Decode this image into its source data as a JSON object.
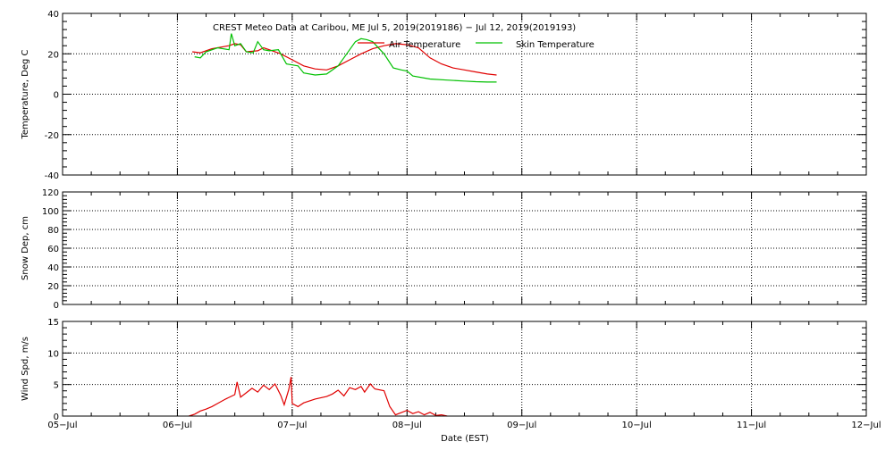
{
  "chart_data": {
    "type": "line",
    "title": "CREST Meteo Data at Caribou, ME   Jul  5, 2019(2019186) − Jul 12, 2019(2019193)",
    "xlabel": "Date (EST)",
    "x_tick_labels": [
      "05−Jul",
      "06−Jul",
      "07−Jul",
      "08−Jul",
      "09−Jul",
      "10−Jul",
      "11−Jul",
      "12−Jul"
    ],
    "xlim_days": [
      0,
      7
    ],
    "colors": {
      "air": "#e00000",
      "skin": "#00c000",
      "wind": "#e00000"
    },
    "panels": [
      {
        "id": "temperature",
        "ylabel": "Temperature, Deg C",
        "ylim": [
          -40,
          40
        ],
        "yticks": [
          -40,
          -20,
          0,
          20,
          40
        ],
        "legend": [
          {
            "name": "Air Temperature",
            "color": "#e00000"
          },
          {
            "name": "Skin Temperature",
            "color": "#00c000"
          }
        ],
        "series": [
          {
            "name": "Air Temperature",
            "color": "#e00000",
            "points": [
              [
                1.13,
                21
              ],
              [
                1.2,
                20.5
              ],
              [
                1.3,
                22.5
              ],
              [
                1.4,
                23.5
              ],
              [
                1.45,
                24
              ],
              [
                1.5,
                25
              ],
              [
                1.55,
                24.5
              ],
              [
                1.6,
                21
              ],
              [
                1.7,
                21.5
              ],
              [
                1.75,
                23
              ],
              [
                1.8,
                22
              ],
              [
                1.9,
                20
              ],
              [
                2.0,
                17
              ],
              [
                2.1,
                14
              ],
              [
                2.2,
                12.5
              ],
              [
                2.3,
                12
              ],
              [
                2.4,
                14
              ],
              [
                2.5,
                17
              ],
              [
                2.6,
                20
              ],
              [
                2.7,
                22.5
              ],
              [
                2.8,
                24
              ],
              [
                2.9,
                25
              ],
              [
                3.0,
                24.5
              ],
              [
                3.1,
                23
              ],
              [
                3.2,
                18
              ],
              [
                3.3,
                15
              ],
              [
                3.4,
                13
              ],
              [
                3.5,
                12
              ],
              [
                3.6,
                11
              ],
              [
                3.7,
                10
              ],
              [
                3.78,
                9.5
              ]
            ]
          },
          {
            "name": "Skin Temperature",
            "color": "#00c000",
            "points": [
              [
                1.15,
                18.5
              ],
              [
                1.2,
                18
              ],
              [
                1.25,
                21
              ],
              [
                1.35,
                23
              ],
              [
                1.45,
                22
              ],
              [
                1.47,
                30
              ],
              [
                1.5,
                24
              ],
              [
                1.55,
                25
              ],
              [
                1.6,
                21
              ],
              [
                1.66,
                20.5
              ],
              [
                1.7,
                26
              ],
              [
                1.75,
                22
              ],
              [
                1.8,
                21.5
              ],
              [
                1.88,
                22
              ],
              [
                1.95,
                15
              ],
              [
                2.05,
                14
              ],
              [
                2.1,
                10.5
              ],
              [
                2.2,
                9.5
              ],
              [
                2.3,
                10
              ],
              [
                2.4,
                14
              ],
              [
                2.5,
                22
              ],
              [
                2.55,
                26
              ],
              [
                2.6,
                27.5
              ],
              [
                2.65,
                27
              ],
              [
                2.7,
                26
              ],
              [
                2.8,
                20
              ],
              [
                2.88,
                13
              ],
              [
                2.95,
                12
              ],
              [
                3.0,
                11.5
              ],
              [
                3.05,
                9
              ],
              [
                3.2,
                7.5
              ],
              [
                3.35,
                7
              ],
              [
                3.5,
                6.5
              ],
              [
                3.6,
                6.2
              ],
              [
                3.7,
                6
              ],
              [
                3.78,
                6
              ]
            ]
          }
        ]
      },
      {
        "id": "snow",
        "ylabel": "Snow Dep, cm",
        "ylim": [
          0,
          120
        ],
        "yticks": [
          0,
          20,
          40,
          60,
          80,
          100,
          120
        ],
        "series": []
      },
      {
        "id": "wind",
        "ylabel": "Wind Spd, m/s",
        "ylim": [
          0,
          15
        ],
        "yticks": [
          0,
          5,
          10,
          15
        ],
        "series": [
          {
            "name": "Wind Speed",
            "color": "#e00000",
            "points": [
              [
                1.1,
                0
              ],
              [
                1.15,
                0.3
              ],
              [
                1.2,
                0.8
              ],
              [
                1.25,
                1.1
              ],
              [
                1.3,
                1.5
              ],
              [
                1.35,
                2
              ],
              [
                1.42,
                2.7
              ],
              [
                1.5,
                3.4
              ],
              [
                1.52,
                5.4
              ],
              [
                1.55,
                3
              ],
              [
                1.6,
                3.7
              ],
              [
                1.65,
                4.4
              ],
              [
                1.7,
                3.8
              ],
              [
                1.75,
                4.9
              ],
              [
                1.8,
                4.2
              ],
              [
                1.85,
                5.1
              ],
              [
                1.9,
                3.3
              ],
              [
                1.93,
                1.8
              ],
              [
                1.97,
                4.2
              ],
              [
                1.99,
                6.2
              ],
              [
                2.0,
                2
              ],
              [
                2.05,
                1.5
              ],
              [
                2.1,
                2.1
              ],
              [
                2.2,
                2.7
              ],
              [
                2.3,
                3.1
              ],
              [
                2.35,
                3.5
              ],
              [
                2.4,
                4.1
              ],
              [
                2.45,
                3.2
              ],
              [
                2.5,
                4.5
              ],
              [
                2.55,
                4.2
              ],
              [
                2.6,
                4.7
              ],
              [
                2.63,
                3.8
              ],
              [
                2.68,
                5.1
              ],
              [
                2.72,
                4.3
              ],
              [
                2.8,
                4.0
              ],
              [
                2.85,
                1.5
              ],
              [
                2.9,
                0.2
              ],
              [
                3.0,
                0.9
              ],
              [
                3.05,
                0.4
              ],
              [
                3.1,
                0.7
              ],
              [
                3.15,
                0.2
              ],
              [
                3.2,
                0.6
              ],
              [
                3.25,
                0.1
              ],
              [
                3.3,
                0.2
              ],
              [
                3.35,
                0
              ]
            ]
          }
        ]
      }
    ]
  }
}
